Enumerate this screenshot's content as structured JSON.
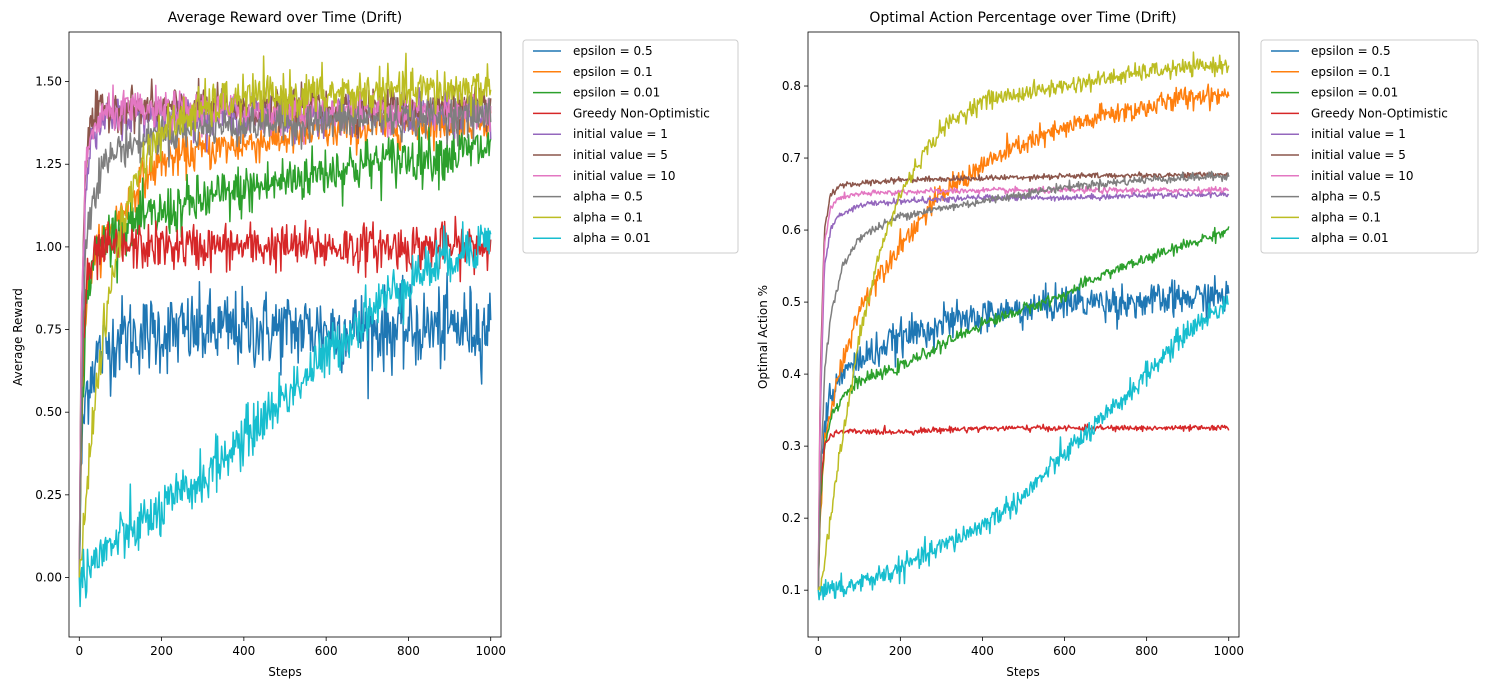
{
  "figure": {
    "series_colors": [
      "#1f77b4",
      "#ff7f0e",
      "#2ca02c",
      "#d62728",
      "#9467bd",
      "#8c564b",
      "#e377c2",
      "#7f7f7f",
      "#bcbd22",
      "#17becf"
    ]
  },
  "chart_data": [
    {
      "type": "line",
      "title": "Average Reward over Time (Drift)",
      "xlabel": "Steps",
      "ylabel": "Average Reward",
      "xlim": [
        -25,
        1025
      ],
      "ylim": [
        -0.18,
        1.65
      ],
      "xticks": [
        0,
        200,
        400,
        600,
        800,
        1000
      ],
      "yticks": [
        0.0,
        0.25,
        0.5,
        0.75,
        1.0,
        1.25,
        1.5
      ],
      "ytick_labels": [
        "0.00",
        "0.25",
        "0.50",
        "0.75",
        "1.00",
        "1.25",
        "1.50"
      ],
      "legend_position": "outside upper right",
      "noise_note": "curves are noisy; values are approximate means",
      "series": [
        {
          "name": "epsilon = 0.5",
          "noise": 0.06,
          "x": [
            0,
            5,
            15,
            30,
            50,
            100,
            200,
            400,
            600,
            800,
            1000
          ],
          "y": [
            0.0,
            0.35,
            0.55,
            0.63,
            0.68,
            0.73,
            0.74,
            0.75,
            0.75,
            0.75,
            0.76
          ]
        },
        {
          "name": "epsilon = 0.1",
          "noise": 0.03,
          "x": [
            0,
            5,
            15,
            30,
            60,
            100,
            150,
            200,
            300,
            400,
            500,
            600,
            800,
            1000
          ],
          "y": [
            0.0,
            0.45,
            0.8,
            0.95,
            1.03,
            1.1,
            1.2,
            1.26,
            1.29,
            1.31,
            1.33,
            1.35,
            1.37,
            1.39
          ]
        },
        {
          "name": "epsilon = 0.01",
          "noise": 0.04,
          "x": [
            0,
            5,
            15,
            30,
            60,
            100,
            200,
            300,
            400,
            500,
            600,
            700,
            800,
            900,
            1000
          ],
          "y": [
            0.0,
            0.4,
            0.8,
            0.95,
            1.02,
            1.06,
            1.1,
            1.14,
            1.17,
            1.2,
            1.23,
            1.25,
            1.27,
            1.28,
            1.3
          ]
        },
        {
          "name": "Greedy Non-Optimistic",
          "noise": 0.035,
          "x": [
            0,
            5,
            15,
            30,
            60,
            100,
            200,
            400,
            600,
            800,
            1000
          ],
          "y": [
            0.0,
            0.55,
            0.85,
            0.95,
            0.99,
            1.0,
            1.0,
            1.0,
            1.0,
            1.0,
            1.0
          ]
        },
        {
          "name": "initial value = 1",
          "noise": 0.03,
          "x": [
            0,
            5,
            15,
            30,
            60,
            100,
            200,
            400,
            600,
            800,
            1000
          ],
          "y": [
            0.0,
            0.7,
            1.2,
            1.32,
            1.38,
            1.4,
            1.4,
            1.4,
            1.4,
            1.4,
            1.4
          ]
        },
        {
          "name": "initial value = 5",
          "noise": 0.03,
          "x": [
            0,
            5,
            15,
            30,
            60,
            100,
            200,
            400,
            600,
            800,
            1000
          ],
          "y": [
            0.0,
            0.8,
            1.25,
            1.38,
            1.42,
            1.42,
            1.42,
            1.42,
            1.42,
            1.42,
            1.42
          ]
        },
        {
          "name": "initial value = 10",
          "noise": 0.03,
          "x": [
            0,
            5,
            15,
            30,
            60,
            100,
            200,
            400,
            600,
            800,
            1000
          ],
          "y": [
            0.0,
            0.75,
            1.22,
            1.35,
            1.4,
            1.41,
            1.41,
            1.41,
            1.41,
            1.41,
            1.41
          ]
        },
        {
          "name": "alpha = 0.5",
          "noise": 0.03,
          "x": [
            0,
            5,
            15,
            30,
            60,
            100,
            200,
            300,
            400,
            600,
            800,
            1000
          ],
          "y": [
            0.0,
            0.5,
            1.0,
            1.15,
            1.25,
            1.3,
            1.34,
            1.36,
            1.37,
            1.38,
            1.39,
            1.4
          ]
        },
        {
          "name": "alpha = 0.1",
          "noise": 0.035,
          "x": [
            0,
            10,
            30,
            50,
            80,
            100,
            150,
            200,
            300,
            400,
            600,
            800,
            1000
          ],
          "y": [
            0.0,
            0.15,
            0.45,
            0.65,
            0.9,
            1.05,
            1.25,
            1.35,
            1.42,
            1.45,
            1.46,
            1.47,
            1.48
          ]
        },
        {
          "name": "alpha = 0.01",
          "noise": 0.04,
          "x": [
            0,
            20,
            100,
            200,
            300,
            400,
            500,
            600,
            700,
            800,
            900,
            1000
          ],
          "y": [
            0.0,
            0.03,
            0.12,
            0.2,
            0.3,
            0.42,
            0.55,
            0.67,
            0.8,
            0.9,
            0.97,
            1.03
          ]
        }
      ]
    },
    {
      "type": "line",
      "title": "Optimal Action Percentage over Time (Drift)",
      "xlabel": "Steps",
      "ylabel": "Optimal Action %",
      "xlim": [
        -25,
        1025
      ],
      "ylim": [
        0.035,
        0.875
      ],
      "xticks": [
        0,
        200,
        400,
        600,
        800,
        1000
      ],
      "yticks": [
        0.1,
        0.2,
        0.3,
        0.4,
        0.5,
        0.6,
        0.7,
        0.8
      ],
      "ytick_labels": [
        "0.1",
        "0.2",
        "0.3",
        "0.4",
        "0.5",
        "0.6",
        "0.7",
        "0.8"
      ],
      "legend_position": "outside upper right",
      "series": [
        {
          "name": "epsilon = 0.5",
          "noise": 0.012,
          "x": [
            0,
            5,
            15,
            30,
            60,
            100,
            200,
            300,
            400,
            600,
            800,
            1000
          ],
          "y": [
            0.1,
            0.25,
            0.33,
            0.37,
            0.4,
            0.42,
            0.45,
            0.47,
            0.48,
            0.5,
            0.5,
            0.51
          ]
        },
        {
          "name": "epsilon = 0.1",
          "noise": 0.008,
          "x": [
            0,
            5,
            15,
            30,
            60,
            100,
            150,
            200,
            300,
            400,
            500,
            600,
            700,
            800,
            900,
            1000
          ],
          "y": [
            0.1,
            0.2,
            0.3,
            0.35,
            0.42,
            0.49,
            0.54,
            0.58,
            0.65,
            0.69,
            0.72,
            0.74,
            0.76,
            0.77,
            0.785,
            0.79
          ]
        },
        {
          "name": "epsilon = 0.01",
          "noise": 0.004,
          "x": [
            0,
            5,
            15,
            30,
            60,
            100,
            200,
            300,
            400,
            500,
            600,
            700,
            800,
            900,
            1000
          ],
          "y": [
            0.1,
            0.22,
            0.3,
            0.34,
            0.37,
            0.39,
            0.41,
            0.44,
            0.47,
            0.49,
            0.51,
            0.54,
            0.56,
            0.58,
            0.6
          ]
        },
        {
          "name": "Greedy Non-Optimistic",
          "noise": 0.002,
          "x": [
            0,
            5,
            15,
            30,
            60,
            100,
            200,
            400,
            600,
            800,
            1000
          ],
          "y": [
            0.1,
            0.24,
            0.3,
            0.315,
            0.32,
            0.32,
            0.32,
            0.325,
            0.325,
            0.325,
            0.325
          ]
        },
        {
          "name": "initial value = 1",
          "noise": 0.002,
          "x": [
            0,
            5,
            15,
            30,
            50,
            100,
            200,
            400,
            600,
            800,
            1000
          ],
          "y": [
            0.1,
            0.35,
            0.55,
            0.6,
            0.62,
            0.635,
            0.64,
            0.645,
            0.645,
            0.648,
            0.65
          ]
        },
        {
          "name": "initial value = 5",
          "noise": 0.002,
          "x": [
            0,
            5,
            15,
            30,
            50,
            100,
            200,
            400,
            600,
            800,
            1000
          ],
          "y": [
            0.1,
            0.4,
            0.6,
            0.65,
            0.66,
            0.665,
            0.67,
            0.672,
            0.675,
            0.676,
            0.677
          ]
        },
        {
          "name": "initial value = 10",
          "noise": 0.002,
          "x": [
            0,
            5,
            15,
            30,
            50,
            100,
            200,
            400,
            600,
            800,
            1000
          ],
          "y": [
            0.1,
            0.38,
            0.58,
            0.63,
            0.645,
            0.65,
            0.653,
            0.655,
            0.655,
            0.655,
            0.656
          ]
        },
        {
          "name": "alpha = 0.5",
          "noise": 0.003,
          "x": [
            0,
            5,
            15,
            30,
            60,
            100,
            200,
            300,
            400,
            500,
            600,
            800,
            1000
          ],
          "y": [
            0.1,
            0.25,
            0.4,
            0.48,
            0.55,
            0.59,
            0.62,
            0.63,
            0.64,
            0.65,
            0.66,
            0.67,
            0.675
          ]
        },
        {
          "name": "alpha = 0.1",
          "noise": 0.006,
          "x": [
            0,
            10,
            30,
            50,
            80,
            100,
            150,
            200,
            250,
            300,
            400,
            500,
            600,
            700,
            800,
            900,
            1000
          ],
          "y": [
            0.1,
            0.12,
            0.2,
            0.28,
            0.38,
            0.45,
            0.57,
            0.65,
            0.7,
            0.74,
            0.78,
            0.79,
            0.8,
            0.81,
            0.82,
            0.825,
            0.83
          ]
        },
        {
          "name": "alpha = 0.01",
          "noise": 0.008,
          "x": [
            0,
            50,
            100,
            200,
            300,
            400,
            500,
            600,
            700,
            800,
            900,
            1000
          ],
          "y": [
            0.1,
            0.1,
            0.11,
            0.13,
            0.16,
            0.19,
            0.23,
            0.29,
            0.34,
            0.4,
            0.46,
            0.5
          ]
        }
      ]
    }
  ]
}
